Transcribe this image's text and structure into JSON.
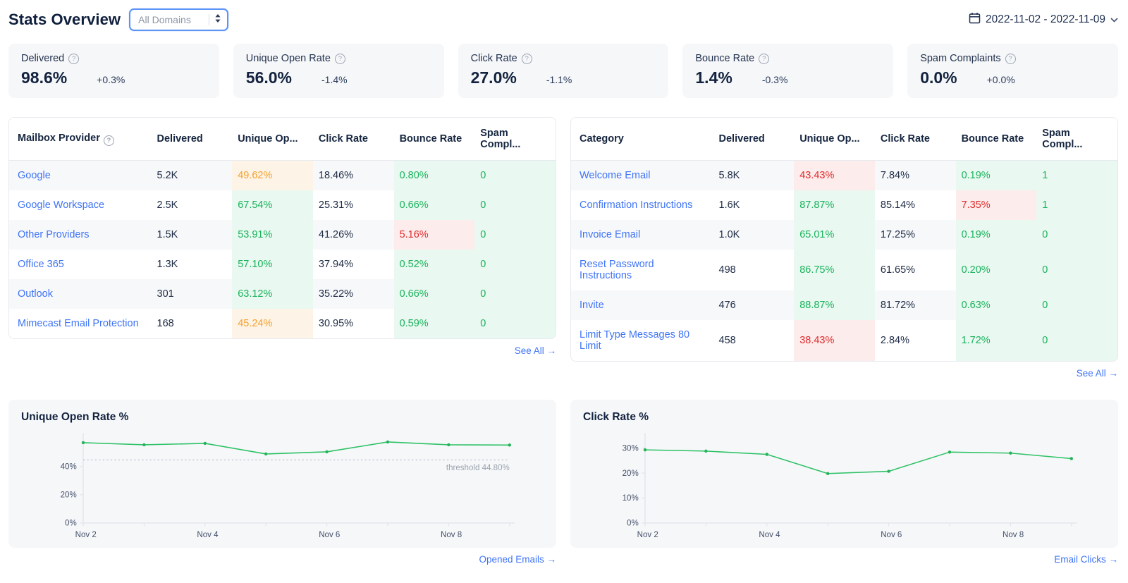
{
  "header": {
    "title": "Stats Overview",
    "domain_select": {
      "value": "All Domains"
    },
    "date_range": "2022-11-02 - 2022-11-09"
  },
  "colors": {
    "accent_link": "#3f74f6",
    "green_text": "#18b35b",
    "green_bg": "#e9f8f0",
    "orange_text": "#f6a12d",
    "orange_bg": "#fdf3e6",
    "red_text": "#e02b2b",
    "red_bg": "#fdecec",
    "chart_line": "#2ec266"
  },
  "stat_cards": [
    {
      "label": "Delivered",
      "value": "98.6%",
      "delta": "+0.3%"
    },
    {
      "label": "Unique Open Rate",
      "value": "56.0%",
      "delta": "-1.4%"
    },
    {
      "label": "Click Rate",
      "value": "27.0%",
      "delta": "-1.1%"
    },
    {
      "label": "Bounce Rate",
      "value": "1.4%",
      "delta": "-0.3%"
    },
    {
      "label": "Spam Complaints",
      "value": "0.0%",
      "delta": "+0.0%"
    }
  ],
  "tables": [
    {
      "id": "mailbox-provider",
      "columns": [
        {
          "label": "Mailbox Provider",
          "help": true
        },
        {
          "label": "Delivered"
        },
        {
          "label": "Unique Op..."
        },
        {
          "label": "Click Rate"
        },
        {
          "label": "Bounce Rate"
        },
        {
          "label": "Spam Compl..."
        }
      ],
      "rows": [
        {
          "name": "Google",
          "delivered": "5.2K",
          "unique_open": {
            "text": "49.62%",
            "tone": "orange"
          },
          "click_rate": "18.46%",
          "bounce": {
            "text": "0.80%",
            "tone": "green"
          },
          "spam": {
            "text": "0",
            "tone": "green"
          }
        },
        {
          "name": "Google Workspace",
          "delivered": "2.5K",
          "unique_open": {
            "text": "67.54%",
            "tone": "green"
          },
          "click_rate": "25.31%",
          "bounce": {
            "text": "0.66%",
            "tone": "green"
          },
          "spam": {
            "text": "0",
            "tone": "green"
          }
        },
        {
          "name": "Other Providers",
          "delivered": "1.5K",
          "unique_open": {
            "text": "53.91%",
            "tone": "green"
          },
          "click_rate": "41.26%",
          "bounce": {
            "text": "5.16%",
            "tone": "red"
          },
          "spam": {
            "text": "0",
            "tone": "green"
          }
        },
        {
          "name": "Office 365",
          "delivered": "1.3K",
          "unique_open": {
            "text": "57.10%",
            "tone": "green"
          },
          "click_rate": "37.94%",
          "bounce": {
            "text": "0.52%",
            "tone": "green"
          },
          "spam": {
            "text": "0",
            "tone": "green"
          }
        },
        {
          "name": "Outlook",
          "delivered": "301",
          "unique_open": {
            "text": "63.12%",
            "tone": "green"
          },
          "click_rate": "35.22%",
          "bounce": {
            "text": "0.66%",
            "tone": "green"
          },
          "spam": {
            "text": "0",
            "tone": "green"
          }
        },
        {
          "name": "Mimecast Email Protection",
          "delivered": "168",
          "unique_open": {
            "text": "45.24%",
            "tone": "orange"
          },
          "click_rate": "30.95%",
          "bounce": {
            "text": "0.59%",
            "tone": "green"
          },
          "spam": {
            "text": "0",
            "tone": "green"
          }
        }
      ],
      "see_all": "See All →"
    },
    {
      "id": "category",
      "columns": [
        {
          "label": "Category",
          "help": false
        },
        {
          "label": "Delivered"
        },
        {
          "label": "Unique Op..."
        },
        {
          "label": "Click Rate"
        },
        {
          "label": "Bounce Rate"
        },
        {
          "label": "Spam Compl..."
        }
      ],
      "rows": [
        {
          "name": "Welcome Email",
          "delivered": "5.8K",
          "unique_open": {
            "text": "43.43%",
            "tone": "red"
          },
          "click_rate": "7.84%",
          "bounce": {
            "text": "0.19%",
            "tone": "green"
          },
          "spam": {
            "text": "1",
            "tone": "green"
          }
        },
        {
          "name": "Confirmation Instructions",
          "delivered": "1.6K",
          "unique_open": {
            "text": "87.87%",
            "tone": "green"
          },
          "click_rate": "85.14%",
          "bounce": {
            "text": "7.35%",
            "tone": "red"
          },
          "spam": {
            "text": "1",
            "tone": "green"
          }
        },
        {
          "name": "Invoice Email",
          "delivered": "1.0K",
          "unique_open": {
            "text": "65.01%",
            "tone": "green"
          },
          "click_rate": "17.25%",
          "bounce": {
            "text": "0.19%",
            "tone": "green"
          },
          "spam": {
            "text": "0",
            "tone": "green"
          }
        },
        {
          "name": "Reset Password Instructions",
          "delivered": "498",
          "unique_open": {
            "text": "86.75%",
            "tone": "green"
          },
          "click_rate": "61.65%",
          "bounce": {
            "text": "0.20%",
            "tone": "green"
          },
          "spam": {
            "text": "0",
            "tone": "green"
          }
        },
        {
          "name": "Invite",
          "delivered": "476",
          "unique_open": {
            "text": "88.87%",
            "tone": "green"
          },
          "click_rate": "81.72%",
          "bounce": {
            "text": "0.63%",
            "tone": "green"
          },
          "spam": {
            "text": "0",
            "tone": "green"
          }
        },
        {
          "name": "Limit Type Messages 80 Limit",
          "delivered": "458",
          "unique_open": {
            "text": "38.43%",
            "tone": "red"
          },
          "click_rate": "2.84%",
          "bounce": {
            "text": "1.72%",
            "tone": "green"
          },
          "spam": {
            "text": "0",
            "tone": "green"
          }
        }
      ],
      "see_all": "See All →"
    }
  ],
  "chart_data": [
    {
      "type": "line",
      "title": "Unique Open Rate %",
      "x": [
        "Nov 2",
        "Nov 3",
        "Nov 4",
        "Nov 5",
        "Nov 6",
        "Nov 7",
        "Nov 8",
        "Nov 9"
      ],
      "values": [
        57.0,
        55.5,
        56.5,
        49.0,
        50.5,
        57.5,
        55.5,
        55.3
      ],
      "ylim": [
        0,
        62
      ],
      "yticks": [
        0,
        20,
        40
      ],
      "x_tick_labels": [
        "Nov 2",
        "Nov 4",
        "Nov 6",
        "Nov 8"
      ],
      "threshold": 44.8,
      "threshold_label": "threshold 44.80%",
      "grid": false,
      "link": "Opened Emails →"
    },
    {
      "type": "line",
      "title": "Click Rate %",
      "x": [
        "Nov 2",
        "Nov 3",
        "Nov 4",
        "Nov 5",
        "Nov 6",
        "Nov 7",
        "Nov 8",
        "Nov 9"
      ],
      "values": [
        29.3,
        28.8,
        27.5,
        19.8,
        20.7,
        28.4,
        28.0,
        25.8
      ],
      "ylim": [
        0,
        35
      ],
      "yticks": [
        0,
        10,
        20,
        30
      ],
      "x_tick_labels": [
        "Nov 2",
        "Nov 4",
        "Nov 6",
        "Nov 8"
      ],
      "grid": false,
      "link": "Email Clicks →"
    }
  ]
}
